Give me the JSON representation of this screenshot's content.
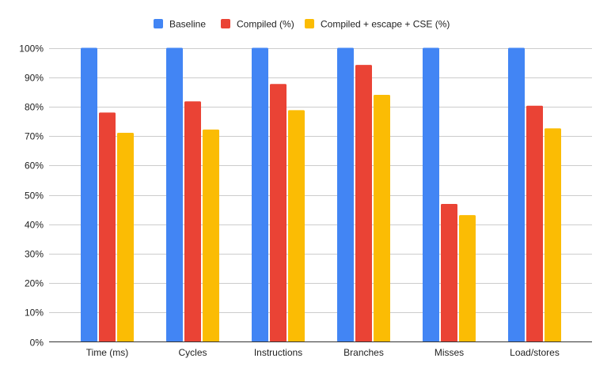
{
  "chart_data": {
    "type": "bar",
    "title": "",
    "xlabel": "",
    "ylabel": "",
    "ylim": [
      0,
      100
    ],
    "y_ticks": [
      "0%",
      "10%",
      "20%",
      "30%",
      "40%",
      "50%",
      "60%",
      "70%",
      "80%",
      "90%",
      "100%"
    ],
    "grid": true,
    "legend_position": "top-center",
    "categories": [
      "Time (ms)",
      "Cycles",
      "Instructions",
      "Branches",
      "Misses",
      "Load/stores"
    ],
    "series": [
      {
        "name": "Baseline",
        "color": "#4285f4",
        "values": [
          100,
          100,
          100,
          100,
          100,
          100
        ]
      },
      {
        "name": "Compiled (%)",
        "color": "#ea4335",
        "values": [
          78.0,
          81.8,
          87.7,
          94.2,
          46.9,
          80.3
        ]
      },
      {
        "name": "Compiled + escape + CSE (%)",
        "color": "#fbbc04",
        "values": [
          71.1,
          72.2,
          78.8,
          84.0,
          43.1,
          72.6
        ]
      }
    ]
  }
}
